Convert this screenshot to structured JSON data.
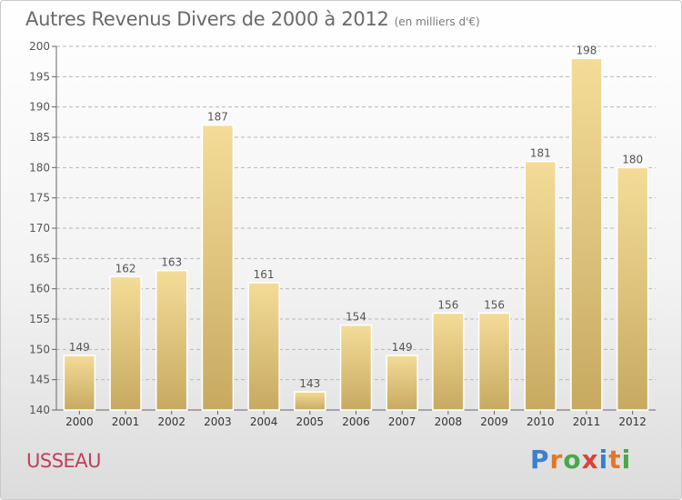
{
  "title": "Autres Revenus Divers de 2000 à 2012",
  "subtitle": "(en milliers d'€)",
  "location": "USSEAU",
  "logo": {
    "text": "Proxiti",
    "letter_colors": [
      "#3a7fd0",
      "#e0782a",
      "#49a84a",
      "#d9443a",
      "#3a7fd0",
      "#e0782a",
      "#49a84a"
    ]
  },
  "colors": {
    "bar_top": "#f4dc98",
    "bar_bottom": "#c7aa60",
    "grid": "#b8b8b8",
    "axis_text": "#555555"
  },
  "chart_data": {
    "type": "bar",
    "title": "Autres Revenus Divers de 2000 à 2012",
    "subtitle": "(en milliers d'€)",
    "xlabel": "",
    "ylabel": "",
    "categories": [
      "2000",
      "2001",
      "2002",
      "2003",
      "2004",
      "2005",
      "2006",
      "2007",
      "2008",
      "2009",
      "2010",
      "2011",
      "2012"
    ],
    "values": [
      149,
      162,
      163,
      187,
      161,
      143,
      154,
      149,
      156,
      156,
      181,
      198,
      180
    ],
    "ylim": [
      140,
      200
    ],
    "yticks": [
      140,
      145,
      150,
      155,
      160,
      165,
      170,
      175,
      180,
      185,
      190,
      195,
      200
    ],
    "grid": "horizontal dashed",
    "legend": "none"
  }
}
